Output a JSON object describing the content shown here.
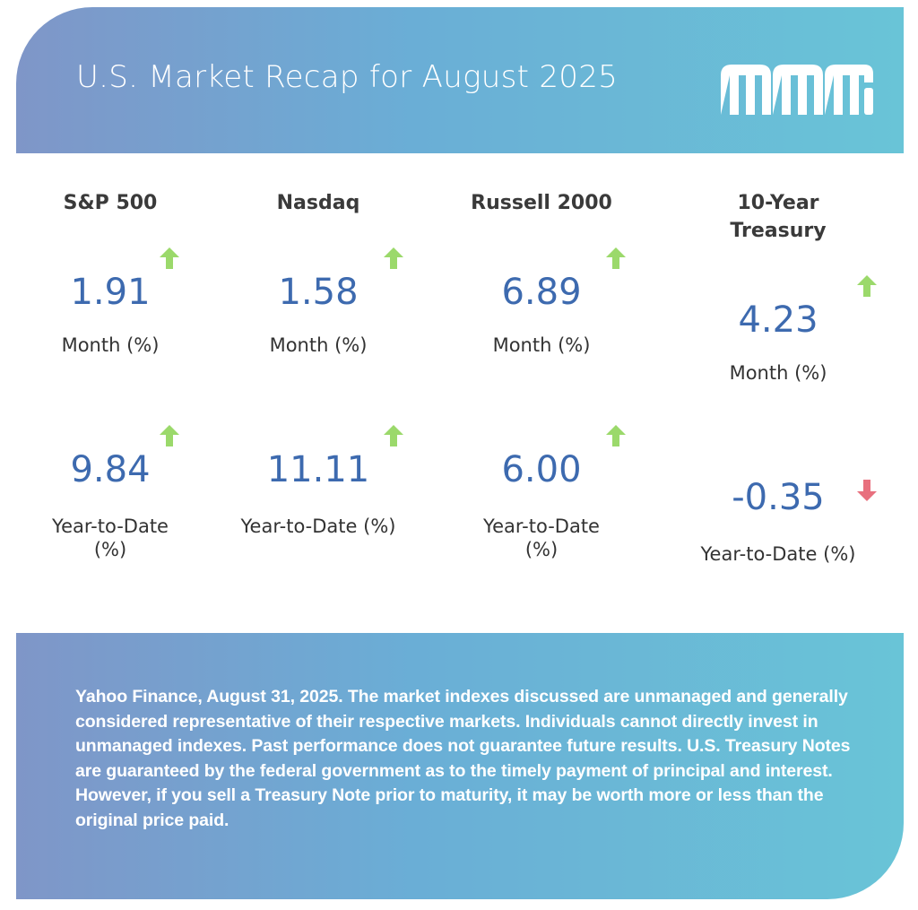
{
  "header": {
    "title": "U.S. Market Recap for August 2025",
    "logo_text": "MMS"
  },
  "colors": {
    "up": "#9bd96b",
    "down": "#e8707e",
    "value": "#3d6aaf",
    "gradient_start": "#7f96c8",
    "gradient_end": "#69c4d7"
  },
  "indexes": [
    {
      "name": "S&P 500",
      "month": "1.91",
      "month_label": "Month (%)",
      "month_dir": "up",
      "ytd": "9.84",
      "ytd_label": "Year-to-Date (%)",
      "ytd_dir": "up"
    },
    {
      "name": "Nasdaq",
      "month": "1.58",
      "month_label": "Month (%)",
      "month_dir": "up",
      "ytd": "11.11",
      "ytd_label": "Year-to-Date (%)",
      "ytd_dir": "up"
    },
    {
      "name": "Russell 2000",
      "month": "6.89",
      "month_label": "Month (%)",
      "month_dir": "up",
      "ytd": "6.00",
      "ytd_label": "Year-to-Date (%)",
      "ytd_dir": "up"
    },
    {
      "name": "10-Year Treasury",
      "month": "4.23",
      "month_label": "Month (%)",
      "month_dir": "up",
      "ytd": "-0.35",
      "ytd_label": "Year-to-Date (%)",
      "ytd_dir": "down"
    }
  ],
  "footer": {
    "disclaimer": "Yahoo Finance, August 31, 2025. The market indexes discussed are unmanaged and generally considered representative of their respective markets. Individuals cannot directly invest in unmanaged indexes. Past performance does not guarantee future results. U.S. Treasury Notes are guaranteed by the federal government as to the timely payment of principal and interest. However, if you sell a Treasury Note prior to maturity, it may be worth more or less than the original price paid."
  }
}
